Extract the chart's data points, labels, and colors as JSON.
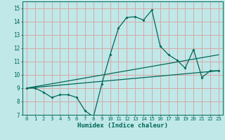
{
  "xlabel": "Humidex (Indice chaleur)",
  "bg_color": "#c0e8e8",
  "grid_color": "#d8a8a8",
  "line_color": "#006858",
  "spine_color": "#006858",
  "xlim": [
    -0.5,
    23.5
  ],
  "ylim": [
    7,
    15.5
  ],
  "xticks": [
    0,
    1,
    2,
    3,
    4,
    5,
    6,
    7,
    8,
    9,
    10,
    11,
    12,
    13,
    14,
    15,
    16,
    17,
    18,
    19,
    20,
    21,
    22,
    23
  ],
  "yticks": [
    7,
    8,
    9,
    10,
    11,
    12,
    13,
    14,
    15
  ],
  "main_line_x": [
    0,
    1,
    2,
    3,
    4,
    5,
    6,
    7,
    8,
    9,
    10,
    11,
    12,
    13,
    14,
    15,
    16,
    17,
    18,
    19,
    20,
    21,
    22,
    23
  ],
  "main_line_y": [
    9.0,
    9.0,
    8.7,
    8.3,
    8.5,
    8.5,
    8.3,
    7.3,
    6.85,
    9.3,
    11.5,
    13.5,
    14.3,
    14.35,
    14.1,
    14.85,
    12.15,
    11.5,
    11.1,
    10.5,
    11.9,
    9.8,
    10.3,
    10.3
  ],
  "line2_x": [
    0,
    23
  ],
  "line2_y": [
    9.0,
    10.3
  ],
  "line3_x": [
    0,
    23
  ],
  "line3_y": [
    9.0,
    11.5
  ]
}
